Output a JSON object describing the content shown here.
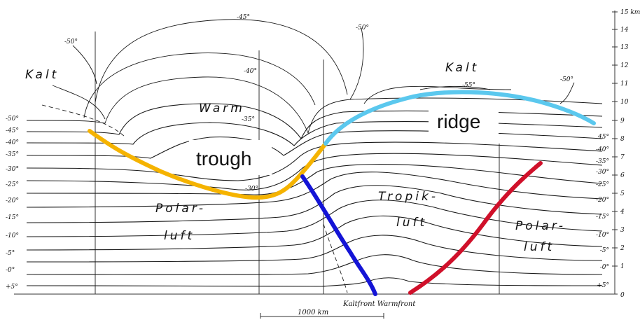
{
  "labels": {
    "kalt_left": "Kalt",
    "kalt_right": "Kalt",
    "warm": "Warm",
    "polar_left_1": "Polar-",
    "polar_left_2": "luft",
    "tropik_1": "Tropik-",
    "tropik_2": "luft",
    "polar_right_1": "Polar-",
    "polar_right_2": "luft",
    "trough": "trough",
    "ridge": "ridge",
    "fronts": "Kaltfront Warmfront",
    "scale": "1000 km"
  },
  "isotherm_labels": {
    "m45": "-45°",
    "m50_a": "-50°",
    "m50_b": "-50°",
    "m50_c": "-50°",
    "m40": "-40°",
    "m35_a": "-35°",
    "m35_b": "-55°",
    "m30": "-30°"
  },
  "left_axis": [
    "-50°",
    "-45°",
    "-40°",
    "-35°",
    "-30°",
    "-25°",
    "-20°",
    "-15°",
    "-10°",
    "-5°",
    "-0°",
    "+5°"
  ],
  "right_axis_temps": [
    "45°",
    "-40°",
    "-35°",
    "-30°",
    "-25°",
    "-20°",
    "-15°",
    "-10°",
    "-5°",
    "-0°",
    "+5°"
  ],
  "right_axis_km": [
    "15 km",
    "14",
    "13",
    "12",
    "11",
    "10",
    "9",
    "8",
    "7",
    "6",
    "5",
    "4",
    "3",
    "2",
    "1",
    "0"
  ],
  "colors": {
    "trough_front": "#f5b300",
    "ridge_front": "#5bc8ee",
    "cold_front": "#1414d6",
    "warm_front": "#d0102a"
  }
}
